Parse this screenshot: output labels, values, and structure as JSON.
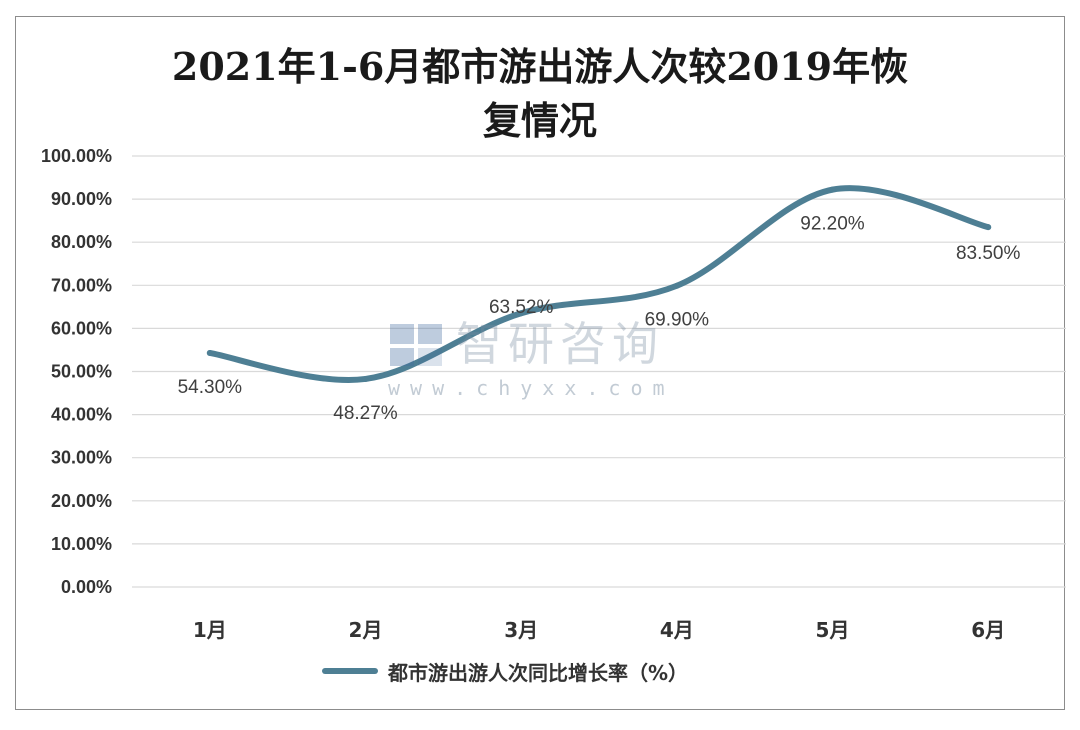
{
  "chart_data": {
    "type": "line",
    "title": "2021年1-6月都市游出游人次较2019年恢复情况",
    "title_lines": [
      "2021年1-6月都市游出游人次较2019年恢",
      "复情况"
    ],
    "categories": [
      "1月",
      "2月",
      "3月",
      "4月",
      "5月",
      "6月"
    ],
    "series": [
      {
        "name": "都市游出游人次同比增长率（%）",
        "values": [
          54.3,
          48.27,
          63.52,
          69.9,
          92.2,
          83.5
        ],
        "labels": [
          "54.30%",
          "48.27%",
          "63.52%",
          "69.90%",
          "92.20%",
          "83.50%"
        ],
        "color": "#4e7f94"
      }
    ],
    "ylim": [
      0,
      100
    ],
    "yticks": [
      "0.00%",
      "10.00%",
      "20.00%",
      "30.00%",
      "40.00%",
      "50.00%",
      "60.00%",
      "70.00%",
      "80.00%",
      "90.00%",
      "100.00%"
    ],
    "xlabel": "",
    "ylabel": "",
    "grid": true,
    "legend": "bottom",
    "smooth": true
  },
  "watermark": {
    "cn": "智研咨询",
    "url": "www.chyxx.com"
  },
  "colors": {
    "line": "#4e7f94",
    "grid": "#d9d9d9",
    "frame": "#8c8c8c"
  }
}
